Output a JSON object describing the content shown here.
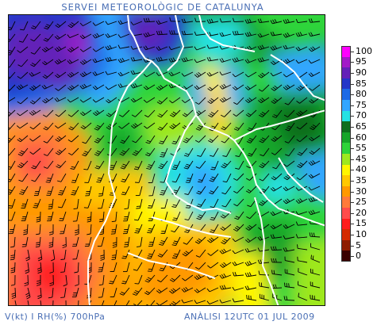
{
  "header": {
    "title": "SERVEI METEOROLÒGIC DE CATALUNYA"
  },
  "footer": {
    "left": "V(kt) I RH(%) 700hPa",
    "right": "ANÀLISI 12UTC 01 JUL 2009"
  },
  "map": {
    "variable": "RH(%)",
    "level": "700hPa",
    "wind_unit": "kt",
    "border_color": "#ffffff",
    "barb_color": "#000000"
  },
  "legend": {
    "items": [
      {
        "label": "100",
        "color": "#ff00ff"
      },
      {
        "label": "95",
        "color": "#a319c8"
      },
      {
        "label": "90",
        "color": "#6421b8"
      },
      {
        "label": "85",
        "color": "#2436c8"
      },
      {
        "label": "80",
        "color": "#1d6ae6"
      },
      {
        "label": "75",
        "color": "#33a6ff"
      },
      {
        "label": "70",
        "color": "#25e1e3"
      },
      {
        "label": "65",
        "color": "#0f6e1e"
      },
      {
        "label": "60",
        "color": "#17a52a"
      },
      {
        "label": "55",
        "color": "#2ed43a"
      },
      {
        "label": "45",
        "color": "#9ee81f"
      },
      {
        "label": "40",
        "color": "#fff600"
      },
      {
        "label": "35",
        "color": "#ffc800"
      },
      {
        "label": "30",
        "color": "#ff9900"
      },
      {
        "label": "25",
        "color": "#ff7a3a"
      },
      {
        "label": "20",
        "color": "#ff4b4b"
      },
      {
        "label": "15",
        "color": "#ff1c1c"
      },
      {
        "label": "10",
        "color": "#d42a00"
      },
      {
        "label": "5",
        "color": "#8e1c00"
      },
      {
        "label": "0",
        "color": "#3a0000"
      }
    ]
  }
}
